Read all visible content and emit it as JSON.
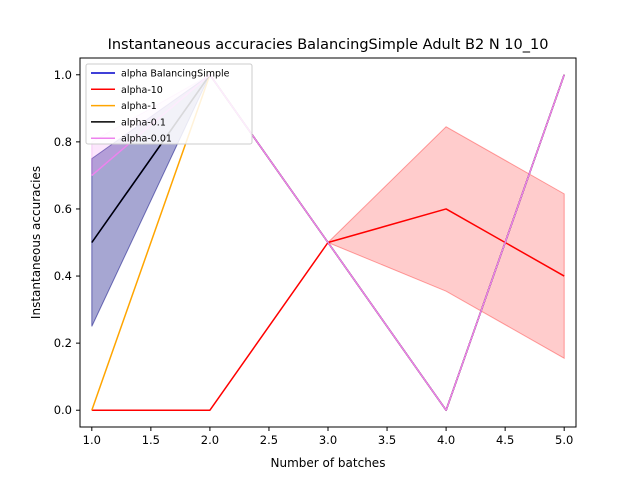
{
  "chart_data": {
    "type": "line",
    "title": "Instantaneous accuracies BalancingSimple Adult B2 N 10_10",
    "xlabel": "Number of batches",
    "ylabel": "Instantaneous accuracies",
    "xlim": [
      0.9,
      5.1
    ],
    "ylim": [
      -0.05,
      1.05
    ],
    "x_ticks": [
      "1.0",
      "1.5",
      "2.0",
      "2.5",
      "3.0",
      "3.5",
      "4.0",
      "4.5",
      "5.0"
    ],
    "y_ticks": [
      "0.0",
      "0.2",
      "0.4",
      "0.6",
      "0.8",
      "1.0"
    ],
    "legend_position": "top-left",
    "grid": false,
    "series": [
      {
        "name": "alpha BalancingSimple",
        "color": "#0000cc",
        "x": [
          1,
          2,
          3,
          4,
          5
        ],
        "values": [
          0.5,
          1.0,
          0.5,
          0.0,
          1.0
        ],
        "band_lower": [
          0.25,
          1.0,
          0.5,
          0.0,
          1.0
        ],
        "band_upper": [
          0.75,
          1.0,
          0.5,
          0.0,
          1.0
        ],
        "band_color": "#00007f",
        "band_opacity": 0.35
      },
      {
        "name": "alpha-10",
        "color": "#ff0000",
        "x": [
          1,
          2,
          3,
          4,
          5
        ],
        "values": [
          0.0,
          0.0,
          0.5,
          0.6,
          0.4
        ],
        "band_lower": [
          0.0,
          0.0,
          0.5,
          0.355,
          0.155
        ],
        "band_upper": [
          0.0,
          0.0,
          0.5,
          0.845,
          0.645
        ],
        "band_color": "#ff0000",
        "band_opacity": 0.2
      },
      {
        "name": "alpha-1",
        "color": "#ffa500",
        "x": [
          1,
          2,
          3,
          4,
          5
        ],
        "values": [
          0.0,
          1.0,
          0.5,
          0.0,
          1.0
        ]
      },
      {
        "name": "alpha-0.1",
        "color": "#000000",
        "x": [
          1,
          2,
          3,
          4,
          5
        ],
        "values": [
          0.5,
          1.0,
          0.5,
          0.0,
          1.0
        ]
      },
      {
        "name": "alpha-0.01",
        "color": "#ee82ee",
        "x": [
          1,
          2,
          3,
          4,
          5
        ],
        "values": [
          0.7,
          1.0,
          0.5,
          0.0,
          1.0
        ],
        "band_lower": [
          0.7,
          1.0,
          0.5,
          0.0,
          1.0
        ],
        "band_upper": [
          0.8,
          1.0,
          0.5,
          0.0,
          1.0
        ],
        "band_color": "#ee82ee",
        "band_opacity": 0.2
      }
    ]
  }
}
